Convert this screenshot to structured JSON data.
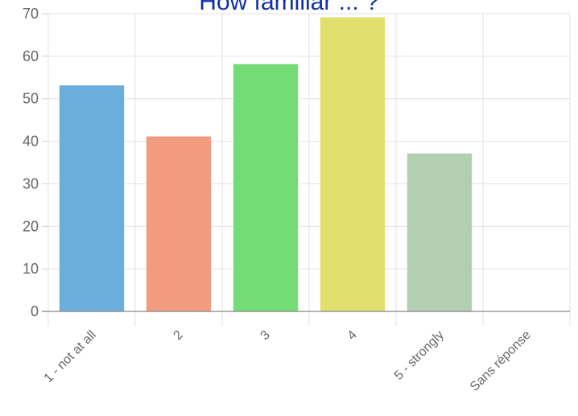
{
  "chart_data": {
    "type": "bar",
    "title": "How familiar ... ?",
    "categories": [
      "1 - not at all",
      "2",
      "3",
      "4",
      "5 - strongly",
      "Sans réponse"
    ],
    "values": [
      53,
      41,
      58,
      69,
      37,
      0
    ],
    "colors": [
      "#6aaedb",
      "#f19c7e",
      "#74dc74",
      "#e1e06e",
      "#b3cfb1",
      "#cccccc"
    ],
    "ylim": [
      0,
      70
    ],
    "yticks": [
      0,
      10,
      20,
      30,
      40,
      50,
      60,
      70
    ],
    "grid": true,
    "legend": "none"
  }
}
